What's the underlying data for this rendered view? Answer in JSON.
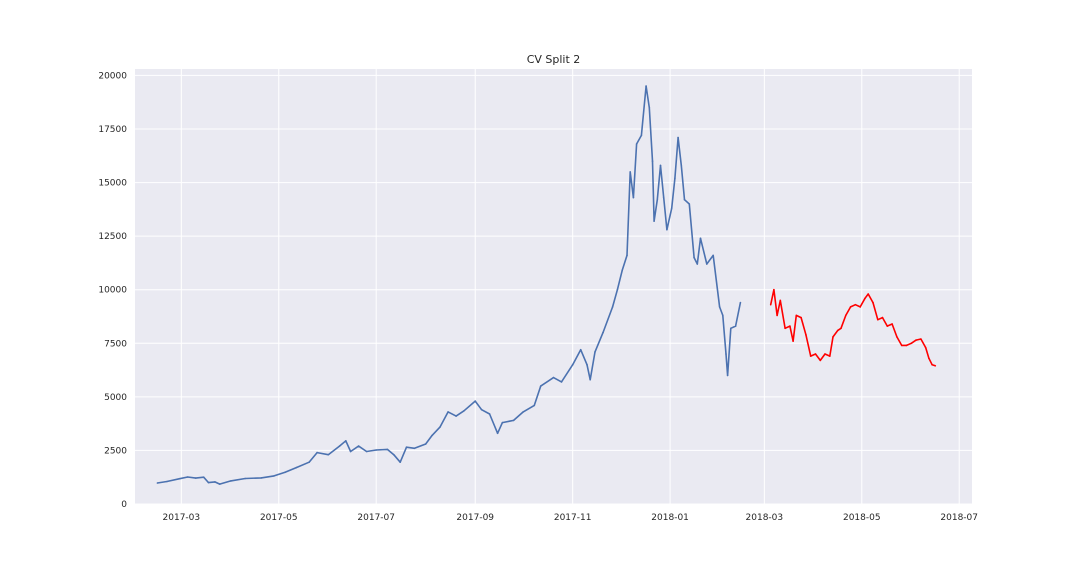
{
  "chart_data": {
    "type": "line",
    "title": "CV Split 2",
    "xlabel": "",
    "ylabel": "",
    "xlim": [
      "2017-01-31",
      "2018-07-09"
    ],
    "ylim": [
      0,
      20300
    ],
    "grid": true,
    "background": "#eaeaf2",
    "x_tick_labels": [
      "2017-03",
      "2017-05",
      "2017-07",
      "2017-09",
      "2017-11",
      "2018-01",
      "2018-03",
      "2018-05",
      "2018-07"
    ],
    "y_tick_labels": [
      "0",
      "2500",
      "5000",
      "7500",
      "10000",
      "12500",
      "15000",
      "17500",
      "20000"
    ],
    "series": [
      {
        "color": "#4c72b0",
        "points": [
          [
            "2017-02-14",
            980
          ],
          [
            "2017-02-20",
            1050
          ],
          [
            "2017-02-28",
            1180
          ],
          [
            "2017-03-05",
            1260
          ],
          [
            "2017-03-10",
            1210
          ],
          [
            "2017-03-15",
            1250
          ],
          [
            "2017-03-18",
            1000
          ],
          [
            "2017-03-22",
            1030
          ],
          [
            "2017-03-25",
            930
          ],
          [
            "2017-04-01",
            1080
          ],
          [
            "2017-04-10",
            1190
          ],
          [
            "2017-04-20",
            1220
          ],
          [
            "2017-04-28",
            1310
          ],
          [
            "2017-05-05",
            1480
          ],
          [
            "2017-05-12",
            1700
          ],
          [
            "2017-05-20",
            1950
          ],
          [
            "2017-05-25",
            2400
          ],
          [
            "2017-06-01",
            2300
          ],
          [
            "2017-06-08",
            2700
          ],
          [
            "2017-06-12",
            2950
          ],
          [
            "2017-06-15",
            2450
          ],
          [
            "2017-06-20",
            2700
          ],
          [
            "2017-06-25",
            2450
          ],
          [
            "2017-07-01",
            2520
          ],
          [
            "2017-07-08",
            2550
          ],
          [
            "2017-07-12",
            2300
          ],
          [
            "2017-07-16",
            1950
          ],
          [
            "2017-07-20",
            2650
          ],
          [
            "2017-07-25",
            2600
          ],
          [
            "2017-08-01",
            2800
          ],
          [
            "2017-08-05",
            3200
          ],
          [
            "2017-08-10",
            3600
          ],
          [
            "2017-08-15",
            4300
          ],
          [
            "2017-08-20",
            4100
          ],
          [
            "2017-08-25",
            4350
          ],
          [
            "2017-09-01",
            4800
          ],
          [
            "2017-09-05",
            4400
          ],
          [
            "2017-09-10",
            4200
          ],
          [
            "2017-09-15",
            3300
          ],
          [
            "2017-09-18",
            3800
          ],
          [
            "2017-09-25",
            3900
          ],
          [
            "2017-10-01",
            4300
          ],
          [
            "2017-10-08",
            4600
          ],
          [
            "2017-10-12",
            5500
          ],
          [
            "2017-10-20",
            5900
          ],
          [
            "2017-10-25",
            5700
          ],
          [
            "2017-11-01",
            6500
          ],
          [
            "2017-11-06",
            7200
          ],
          [
            "2017-11-10",
            6500
          ],
          [
            "2017-11-12",
            5800
          ],
          [
            "2017-11-15",
            7100
          ],
          [
            "2017-11-20",
            8000
          ],
          [
            "2017-11-26",
            9200
          ],
          [
            "2017-11-29",
            10000
          ],
          [
            "2017-12-02",
            10900
          ],
          [
            "2017-12-05",
            11600
          ],
          [
            "2017-12-07",
            15500
          ],
          [
            "2017-12-09",
            14300
          ],
          [
            "2017-12-11",
            16800
          ],
          [
            "2017-12-14",
            17200
          ],
          [
            "2017-12-17",
            19500
          ],
          [
            "2017-12-19",
            18500
          ],
          [
            "2017-12-21",
            16000
          ],
          [
            "2017-12-22",
            13200
          ],
          [
            "2017-12-24",
            14200
          ],
          [
            "2017-12-26",
            15800
          ],
          [
            "2017-12-28",
            14300
          ],
          [
            "2017-12-30",
            12800
          ],
          [
            "2018-01-02",
            13800
          ],
          [
            "2018-01-04",
            15200
          ],
          [
            "2018-01-06",
            17100
          ],
          [
            "2018-01-08",
            15800
          ],
          [
            "2018-01-10",
            14200
          ],
          [
            "2018-01-13",
            14000
          ],
          [
            "2018-01-16",
            11500
          ],
          [
            "2018-01-18",
            11200
          ],
          [
            "2018-01-20",
            12400
          ],
          [
            "2018-01-24",
            11200
          ],
          [
            "2018-01-28",
            11600
          ],
          [
            "2018-02-01",
            9200
          ],
          [
            "2018-02-03",
            8800
          ],
          [
            "2018-02-05",
            7000
          ],
          [
            "2018-02-06",
            6000
          ],
          [
            "2018-02-08",
            8200
          ],
          [
            "2018-02-11",
            8300
          ],
          [
            "2018-02-14",
            9400
          ]
        ]
      },
      {
        "color": "#ff0000",
        "points": [
          [
            "2018-03-05",
            9300
          ],
          [
            "2018-03-07",
            10000
          ],
          [
            "2018-03-09",
            8800
          ],
          [
            "2018-03-11",
            9500
          ],
          [
            "2018-03-14",
            8200
          ],
          [
            "2018-03-17",
            8300
          ],
          [
            "2018-03-19",
            7600
          ],
          [
            "2018-03-21",
            8800
          ],
          [
            "2018-03-24",
            8700
          ],
          [
            "2018-03-27",
            7900
          ],
          [
            "2018-03-30",
            6900
          ],
          [
            "2018-04-02",
            7000
          ],
          [
            "2018-04-05",
            6700
          ],
          [
            "2018-04-08",
            7000
          ],
          [
            "2018-04-11",
            6900
          ],
          [
            "2018-04-13",
            7800
          ],
          [
            "2018-04-16",
            8100
          ],
          [
            "2018-04-18",
            8200
          ],
          [
            "2018-04-21",
            8800
          ],
          [
            "2018-04-24",
            9200
          ],
          [
            "2018-04-27",
            9300
          ],
          [
            "2018-04-30",
            9200
          ],
          [
            "2018-05-03",
            9600
          ],
          [
            "2018-05-05",
            9800
          ],
          [
            "2018-05-08",
            9400
          ],
          [
            "2018-05-11",
            8600
          ],
          [
            "2018-05-14",
            8700
          ],
          [
            "2018-05-17",
            8300
          ],
          [
            "2018-05-20",
            8400
          ],
          [
            "2018-05-23",
            7800
          ],
          [
            "2018-05-26",
            7400
          ],
          [
            "2018-05-29",
            7400
          ],
          [
            "2018-06-01",
            7500
          ],
          [
            "2018-06-04",
            7650
          ],
          [
            "2018-06-07",
            7700
          ],
          [
            "2018-06-10",
            7300
          ],
          [
            "2018-06-12",
            6800
          ],
          [
            "2018-06-14",
            6500
          ],
          [
            "2018-06-16",
            6450
          ]
        ]
      }
    ]
  }
}
